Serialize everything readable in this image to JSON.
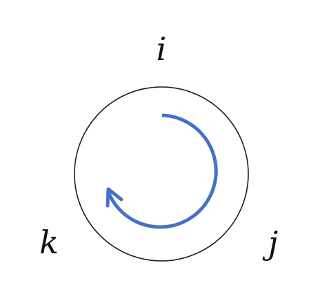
{
  "diagram": {
    "labels": {
      "top": "i",
      "bottom_right": "j",
      "bottom_left": "k"
    },
    "colors": {
      "circle_stroke": "#1a1a1a",
      "arrow": "#4472C4",
      "text": "#111111",
      "background": "#ffffff"
    },
    "arrow_direction": "clockwise"
  }
}
